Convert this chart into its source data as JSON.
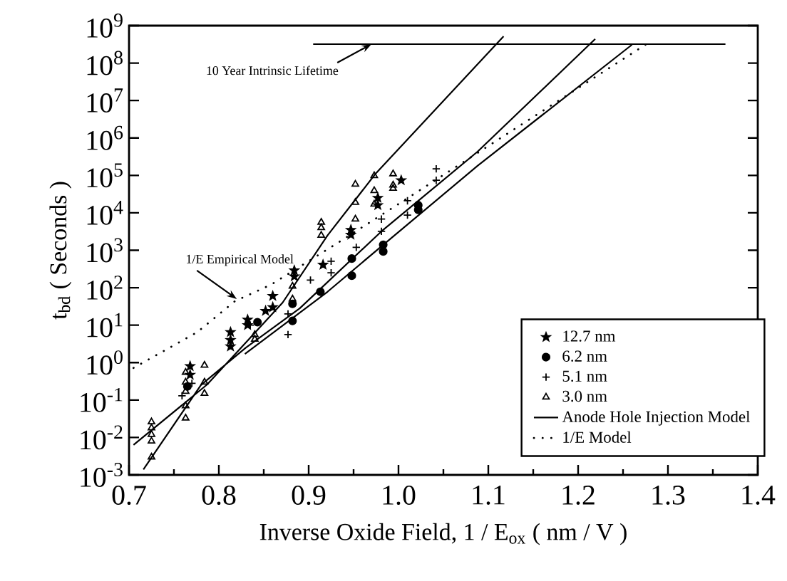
{
  "chart_data": {
    "type": "scatter",
    "xlabel": "Inverse Oxide Field, 1 / E$_{ox}$ ( nm / V )",
    "ylabel": "t$_{bd}$  ( Seconds )",
    "log": "y",
    "xlim": [
      0.7,
      1.4
    ],
    "ylim": [
      0.001,
      1000000000
    ],
    "xticks": [
      {
        "value": 0.7,
        "label": "0.7"
      },
      {
        "value": 0.8,
        "label": "0.8"
      },
      {
        "value": 0.9,
        "label": "0.9"
      },
      {
        "value": 1.0,
        "label": "1.0"
      },
      {
        "value": 1.1,
        "label": "1.1"
      },
      {
        "value": 1.2,
        "label": "1.2"
      },
      {
        "value": 1.3,
        "label": "1.3"
      },
      {
        "value": 1.4,
        "label": "1.4"
      }
    ],
    "yticks": [
      {
        "value": 0.001,
        "label": "10$^{-3}$"
      },
      {
        "value": 0.01,
        "label": "10$^{-2}$"
      },
      {
        "value": 0.1,
        "label": "10$^{-1}$"
      },
      {
        "value": 1,
        "label": "10$^{0}$"
      },
      {
        "value": 10,
        "label": "10$^{1}$"
      },
      {
        "value": 100,
        "label": "10$^{2}$"
      },
      {
        "value": 1000,
        "label": "10$^{3}$"
      },
      {
        "value": 10000,
        "label": "10$^{4}$"
      },
      {
        "value": 100000,
        "label": "10$^{5}$"
      },
      {
        "value": 1000000,
        "label": "10$^{6}$"
      },
      {
        "value": 10000000,
        "label": "10$^{7}$"
      },
      {
        "value": 100000000,
        "label": "10$^{8}$"
      },
      {
        "value": 1000000000,
        "label": "10$^{9}$"
      }
    ],
    "legend": "bottom right",
    "annotations": [
      {
        "text": "10 Year Intrinsic Lifetime",
        "x": 0.97,
        "y": 320000000
      },
      {
        "text": "1/E Empirical Model",
        "x": 0.82,
        "y": 50
      }
    ],
    "series": [
      {
        "name": "12.7 nm",
        "marker": "star",
        "color": "#000000",
        "x": [
          0.768,
          0.768,
          0.813,
          0.813,
          0.813,
          0.832,
          0.832,
          0.852,
          0.86,
          0.86,
          0.884,
          0.884,
          0.916,
          0.947,
          0.947,
          0.977,
          0.977,
          1.003
        ],
        "values": [
          0.8,
          0.47,
          6.5,
          4,
          2.7,
          14,
          10,
          24,
          60,
          30,
          290,
          200,
          410,
          3500,
          2600,
          25000,
          16000,
          74000
        ]
      },
      {
        "name": "6.2 nm",
        "marker": "circle",
        "color": "#000000",
        "x": [
          0.765,
          0.843,
          0.882,
          0.882,
          0.913,
          0.948,
          0.948,
          0.983,
          0.983,
          1.022,
          1.022
        ],
        "values": [
          0.23,
          12,
          37,
          13,
          78,
          600,
          210,
          1400,
          930,
          16000,
          12000
        ]
      },
      {
        "name": "5.1 nm",
        "marker": "cross",
        "color": "#000000",
        "x": [
          0.759,
          0.77,
          0.835,
          0.877,
          0.877,
          0.902,
          0.925,
          0.925,
          0.953,
          0.981,
          0.981,
          1.01,
          1.01,
          1.042,
          1.042
        ],
        "values": [
          0.13,
          0.28,
          10,
          5.6,
          20,
          160,
          510,
          250,
          1200,
          6800,
          3200,
          21000,
          8700,
          150000,
          74000
        ]
      },
      {
        "name": "3.0 nm",
        "marker": "triangle",
        "color": "#000000",
        "x": [
          0.725,
          0.725,
          0.725,
          0.725,
          0.725,
          0.763,
          0.763,
          0.763,
          0.763,
          0.763,
          0.784,
          0.784,
          0.784,
          0.84,
          0.84,
          0.882,
          0.882,
          0.914,
          0.914,
          0.914,
          0.952,
          0.952,
          0.952,
          0.973,
          0.973,
          0.973,
          0.994,
          0.994,
          0.994
        ],
        "values": [
          0.026,
          0.018,
          0.012,
          0.008,
          0.003,
          0.55,
          0.3,
          0.17,
          0.07,
          0.033,
          0.85,
          0.3,
          0.15,
          5.6,
          4.2,
          110,
          50,
          5600,
          4000,
          2500,
          58000,
          19000,
          6800,
          98000,
          39000,
          17000,
          110000,
          55000,
          45000
        ]
      },
      {
        "name": "Anode Hole Injection Model",
        "type": "line",
        "marker": "none",
        "line_style": "solid",
        "color": "#000000",
        "x": [
          0.705,
          0.787,
          0.821,
          0.871,
          0.921,
          0.975,
          1.117,
          null,
          0.716,
          0.78,
          0.83,
          0.89,
          0.981,
          1.088,
          1.219,
          null,
          0.829,
          0.921,
          0.983,
          1.088,
          1.26
        ],
        "values": [
          0.0063,
          0.26,
          2.0,
          40,
          2500,
          115000,
          520000000,
          null,
          0.0014,
          0.25,
          2.5,
          28,
          3200,
          430000,
          440000000,
          null,
          1.7,
          78,
          1400,
          180000,
          310000000
        ]
      },
      {
        "name": "1/E Model",
        "type": "line",
        "marker": "none",
        "line_style": "dotted",
        "color": "#000000",
        "x": [
          0.705,
          0.776,
          0.818,
          0.858,
          0.929,
          0.998,
          1.152,
          1.275
        ],
        "values": [
          0.72,
          6.5,
          44,
          120,
          1400,
          16000,
          3900000,
          310000000
        ]
      },
      {
        "type": "line",
        "marker": "none",
        "line_style": "solid",
        "color": "#000000",
        "x": [
          0.905,
          1.364
        ],
        "values": [
          320000000,
          320000000
        ]
      }
    ]
  }
}
